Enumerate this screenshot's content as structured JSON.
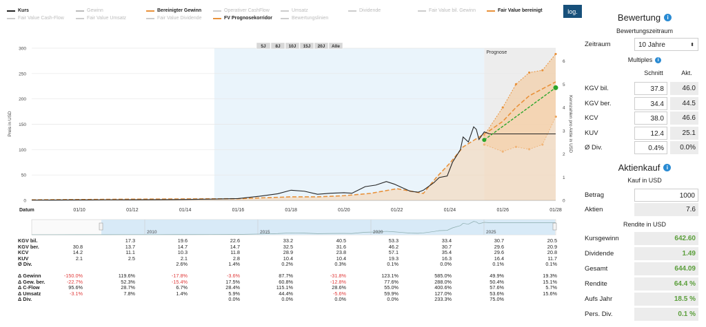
{
  "legend": {
    "row1": [
      {
        "label": "Kurs",
        "on": true,
        "color": "#222222",
        "dash": false
      },
      {
        "label": "Gewinn",
        "on": false,
        "color": "#bbbbbb",
        "dash": false
      },
      {
        "label": "Bereinigter Gewinn",
        "on": true,
        "color": "#e8913a",
        "dash": true
      },
      {
        "label": "Operativer CashFlow",
        "on": false,
        "color": "#cccccc",
        "dash": false
      },
      {
        "label": "Umsatz",
        "on": false,
        "color": "#cccccc",
        "dash": false
      },
      {
        "label": "Dividende",
        "on": false,
        "color": "#cccccc",
        "dash": false
      },
      {
        "label": "Fair Value bil. Gewinn",
        "on": false,
        "color": "#cccccc",
        "dash": true
      },
      {
        "label": "Fair Value bereinigt",
        "on": true,
        "color": "#e8913a",
        "dash": true
      }
    ],
    "row2": [
      {
        "label": "Fair Value Cash-Flow",
        "on": false,
        "color": "#cccccc",
        "dash": true
      },
      {
        "label": "Fair Value Umsatz",
        "on": false,
        "color": "#cccccc",
        "dash": true
      },
      {
        "label": "Fair Value Dividende",
        "on": false,
        "color": "#cccccc",
        "dash": true
      },
      {
        "label": "FV Prognosekorridor",
        "on": true,
        "color": "#e8913a",
        "dash": false
      },
      {
        "label": "Bewertungslinien",
        "on": false,
        "color": "#cccccc",
        "dash": false
      }
    ],
    "log_label": "log."
  },
  "chart": {
    "range_buttons": [
      "5J",
      "8J",
      "10J",
      "15J",
      "20J",
      "Alle"
    ],
    "prognose_label": "Prognose",
    "ylabel_left": "Preis in USD",
    "ylabel_right": "Kennzahlen pro Aktie in USD",
    "x_first_label": "Datum",
    "navigator_years": [
      "2010",
      "2015",
      "2020",
      "2025"
    ]
  },
  "chart_data": {
    "type": "line",
    "y_left_ticks": [
      0,
      50,
      100,
      150,
      200,
      250,
      300
    ],
    "y_right_ticks": [
      0,
      1,
      2,
      3,
      4,
      5,
      6
    ],
    "x_ticks": [
      "01/10",
      "01/12",
      "01/14",
      "01/16",
      "01/18",
      "01/20",
      "01/22",
      "01/24",
      "01/26",
      "01/28"
    ],
    "series": [
      {
        "name": "Kurs",
        "points": [
          [
            2008.2,
            0.5
          ],
          [
            2009,
            0.6
          ],
          [
            2010,
            0.9
          ],
          [
            2011,
            1.2
          ],
          [
            2012,
            1.3
          ],
          [
            2013,
            1.4
          ],
          [
            2014,
            1.8
          ],
          [
            2015,
            2.5
          ],
          [
            2016,
            3.5
          ],
          [
            2016.8,
            8
          ],
          [
            2017.5,
            13
          ],
          [
            2018,
            20
          ],
          [
            2018.5,
            18
          ],
          [
            2019,
            12
          ],
          [
            2019.5,
            14
          ],
          [
            2020,
            15
          ],
          [
            2020.3,
            14
          ],
          [
            2020.8,
            27
          ],
          [
            2021.2,
            30
          ],
          [
            2021.6,
            37
          ],
          [
            2021.9,
            32
          ],
          [
            2022.2,
            25
          ],
          [
            2022.5,
            18
          ],
          [
            2022.8,
            16
          ],
          [
            2023,
            20
          ],
          [
            2023.4,
            35
          ],
          [
            2023.6,
            45
          ],
          [
            2023.9,
            48
          ],
          [
            2024.1,
            75
          ],
          [
            2024.4,
            100
          ],
          [
            2024.5,
            125
          ],
          [
            2024.7,
            115
          ],
          [
            2024.9,
            145
          ],
          [
            2025,
            140
          ],
          [
            2025.1,
            120
          ],
          [
            2025.3,
            135
          ],
          [
            2025.5,
            131
          ],
          [
            2028,
            131
          ]
        ]
      },
      {
        "name": "Bereinigter Gewinn",
        "points": [
          [
            2008.2,
            0.02
          ],
          [
            2012,
            0.05
          ],
          [
            2016,
            0.07
          ],
          [
            2018,
            0.15
          ],
          [
            2019,
            0.15
          ],
          [
            2020,
            0.2
          ],
          [
            2021,
            0.3
          ],
          [
            2022,
            0.5
          ],
          [
            2023,
            0.3
          ],
          [
            2023.5,
            1.0
          ],
          [
            2024,
            1.6
          ],
          [
            2024.5,
            2.3
          ],
          [
            2025.5,
            3.0
          ],
          [
            2026,
            3.4
          ],
          [
            2026.5,
            4.0
          ],
          [
            2027,
            4.5
          ],
          [
            2028,
            5.1
          ]
        ]
      },
      {
        "name": "Fair Value bereinigt",
        "points": [
          [
            2025.3,
            2.6
          ],
          [
            2028,
            4.85
          ]
        ]
      }
    ],
    "forecast_corridor": {
      "high": [
        [
          2025.3,
          2.8
        ],
        [
          2026,
          4.0
        ],
        [
          2026.5,
          5.0
        ],
        [
          2027,
          5.5
        ],
        [
          2027.5,
          5.6
        ],
        [
          2028,
          6.3
        ]
      ],
      "low": [
        [
          2025.3,
          2.4
        ],
        [
          2026,
          2.1
        ],
        [
          2026.5,
          2.3
        ],
        [
          2027,
          2.2
        ],
        [
          2027.5,
          2.4
        ],
        [
          2028,
          3.6
        ]
      ]
    }
  },
  "table": {
    "columns_x": [
      120,
      196,
      272,
      348,
      425,
      502,
      578,
      655,
      731,
      808
    ],
    "rows": [
      {
        "label": "KGV bil.",
        "values": [
          "",
          "17.3",
          "19.6",
          "22.6",
          "33.2",
          "40.5",
          "53.3",
          "33.4",
          "30.7",
          "20.5"
        ]
      },
      {
        "label": "KGV ber.",
        "values": [
          "30.8",
          "13.7",
          "14.7",
          "14.7",
          "32.5",
          "31.6",
          "46.2",
          "30.7",
          "29.6",
          "20.9"
        ]
      },
      {
        "label": "KCV",
        "values": [
          "14.2",
          "11.1",
          "10.3",
          "11.8",
          "28.9",
          "23.8",
          "57.1",
          "35.4",
          "29.6",
          "20.8"
        ]
      },
      {
        "label": "KUV",
        "values": [
          "2.1",
          "2.5",
          "2.1",
          "2.8",
          "10.4",
          "10.4",
          "19.3",
          "16.3",
          "16.4",
          "11.7"
        ]
      },
      {
        "label": "Ø Div.",
        "values": [
          "",
          "",
          "2.6%",
          "1.4%",
          "0.2%",
          "0.3%",
          "0.1%",
          "0.0%",
          "0.1%",
          "0.1%"
        ]
      },
      {
        "label": "",
        "values": [
          "",
          "",
          "",
          "",
          "",
          "",
          "",
          "",
          "",
          ""
        ]
      },
      {
        "label": "Δ Gewinn",
        "values": [
          "-150.0%",
          "119.6%",
          "-17.8%",
          "-3.6%",
          "87.7%",
          "-31.8%",
          "123.1%",
          "585.0%",
          "49.9%",
          "19.3%"
        ]
      },
      {
        "label": "Δ Gew. ber.",
        "values": [
          "-22.7%",
          "52.3%",
          "-15.4%",
          "17.5%",
          "60.8%",
          "-12.8%",
          "77.6%",
          "288.0%",
          "50.4%",
          "15.1%"
        ]
      },
      {
        "label": "Δ C-Flow",
        "values": [
          "95.6%",
          "28.7%",
          "6.7%",
          "28.4%",
          "115.1%",
          "28.6%",
          "55.0%",
          "400.6%",
          "57.6%",
          "5.7%"
        ]
      },
      {
        "label": "Δ Umsatz",
        "values": [
          "-3.1%",
          "7.8%",
          "1.4%",
          "5.9%",
          "44.4%",
          "-5.6%",
          "59.9%",
          "127.0%",
          "53.6%",
          "15.6%"
        ]
      },
      {
        "label": "Δ Div.",
        "values": [
          "",
          "",
          "",
          "0.0%",
          "0.0%",
          "0.0%",
          "0.0%",
          "233.3%",
          "75.0%",
          ""
        ]
      }
    ]
  },
  "panel": {
    "bewertung_title": "Bewertung",
    "zeitraum_title": "Bewertungszeitraum",
    "zeitraum_label": "Zeitraum",
    "zeitraum_value": "10 Jahre",
    "multiples_title": "Multiples",
    "col_schnitt": "Schnitt",
    "col_akt": "Akt.",
    "multiples": [
      {
        "label": "KGV bil.",
        "schnitt": "37.8",
        "akt": "46.0"
      },
      {
        "label": "KGV ber.",
        "schnitt": "34.4",
        "akt": "44.5"
      },
      {
        "label": "KCV",
        "schnitt": "38.0",
        "akt": "46.6"
      },
      {
        "label": "KUV",
        "schnitt": "12.4",
        "akt": "25.1"
      },
      {
        "label": "Ø Div.",
        "schnitt": "0.4%",
        "akt": "0.0%"
      }
    ],
    "aktienkauf_title": "Aktienkauf",
    "kauf_sub": "Kauf in USD",
    "betrag_label": "Betrag",
    "betrag_value": "1000",
    "aktien_label": "Aktien",
    "aktien_value": "7.6",
    "rendite_sub": "Rendite in USD",
    "rendite": [
      {
        "label": "Kursgewinn",
        "value": "642.60"
      },
      {
        "label": "Dividende",
        "value": "1.49"
      },
      {
        "label": "Gesamt",
        "value": "644.09"
      },
      {
        "label": "Rendite",
        "value": "64.4 %"
      },
      {
        "label": "Aufs Jahr",
        "value": "18.5 %"
      },
      {
        "label": "Pers. Div.",
        "value": "0.1 %"
      }
    ]
  }
}
